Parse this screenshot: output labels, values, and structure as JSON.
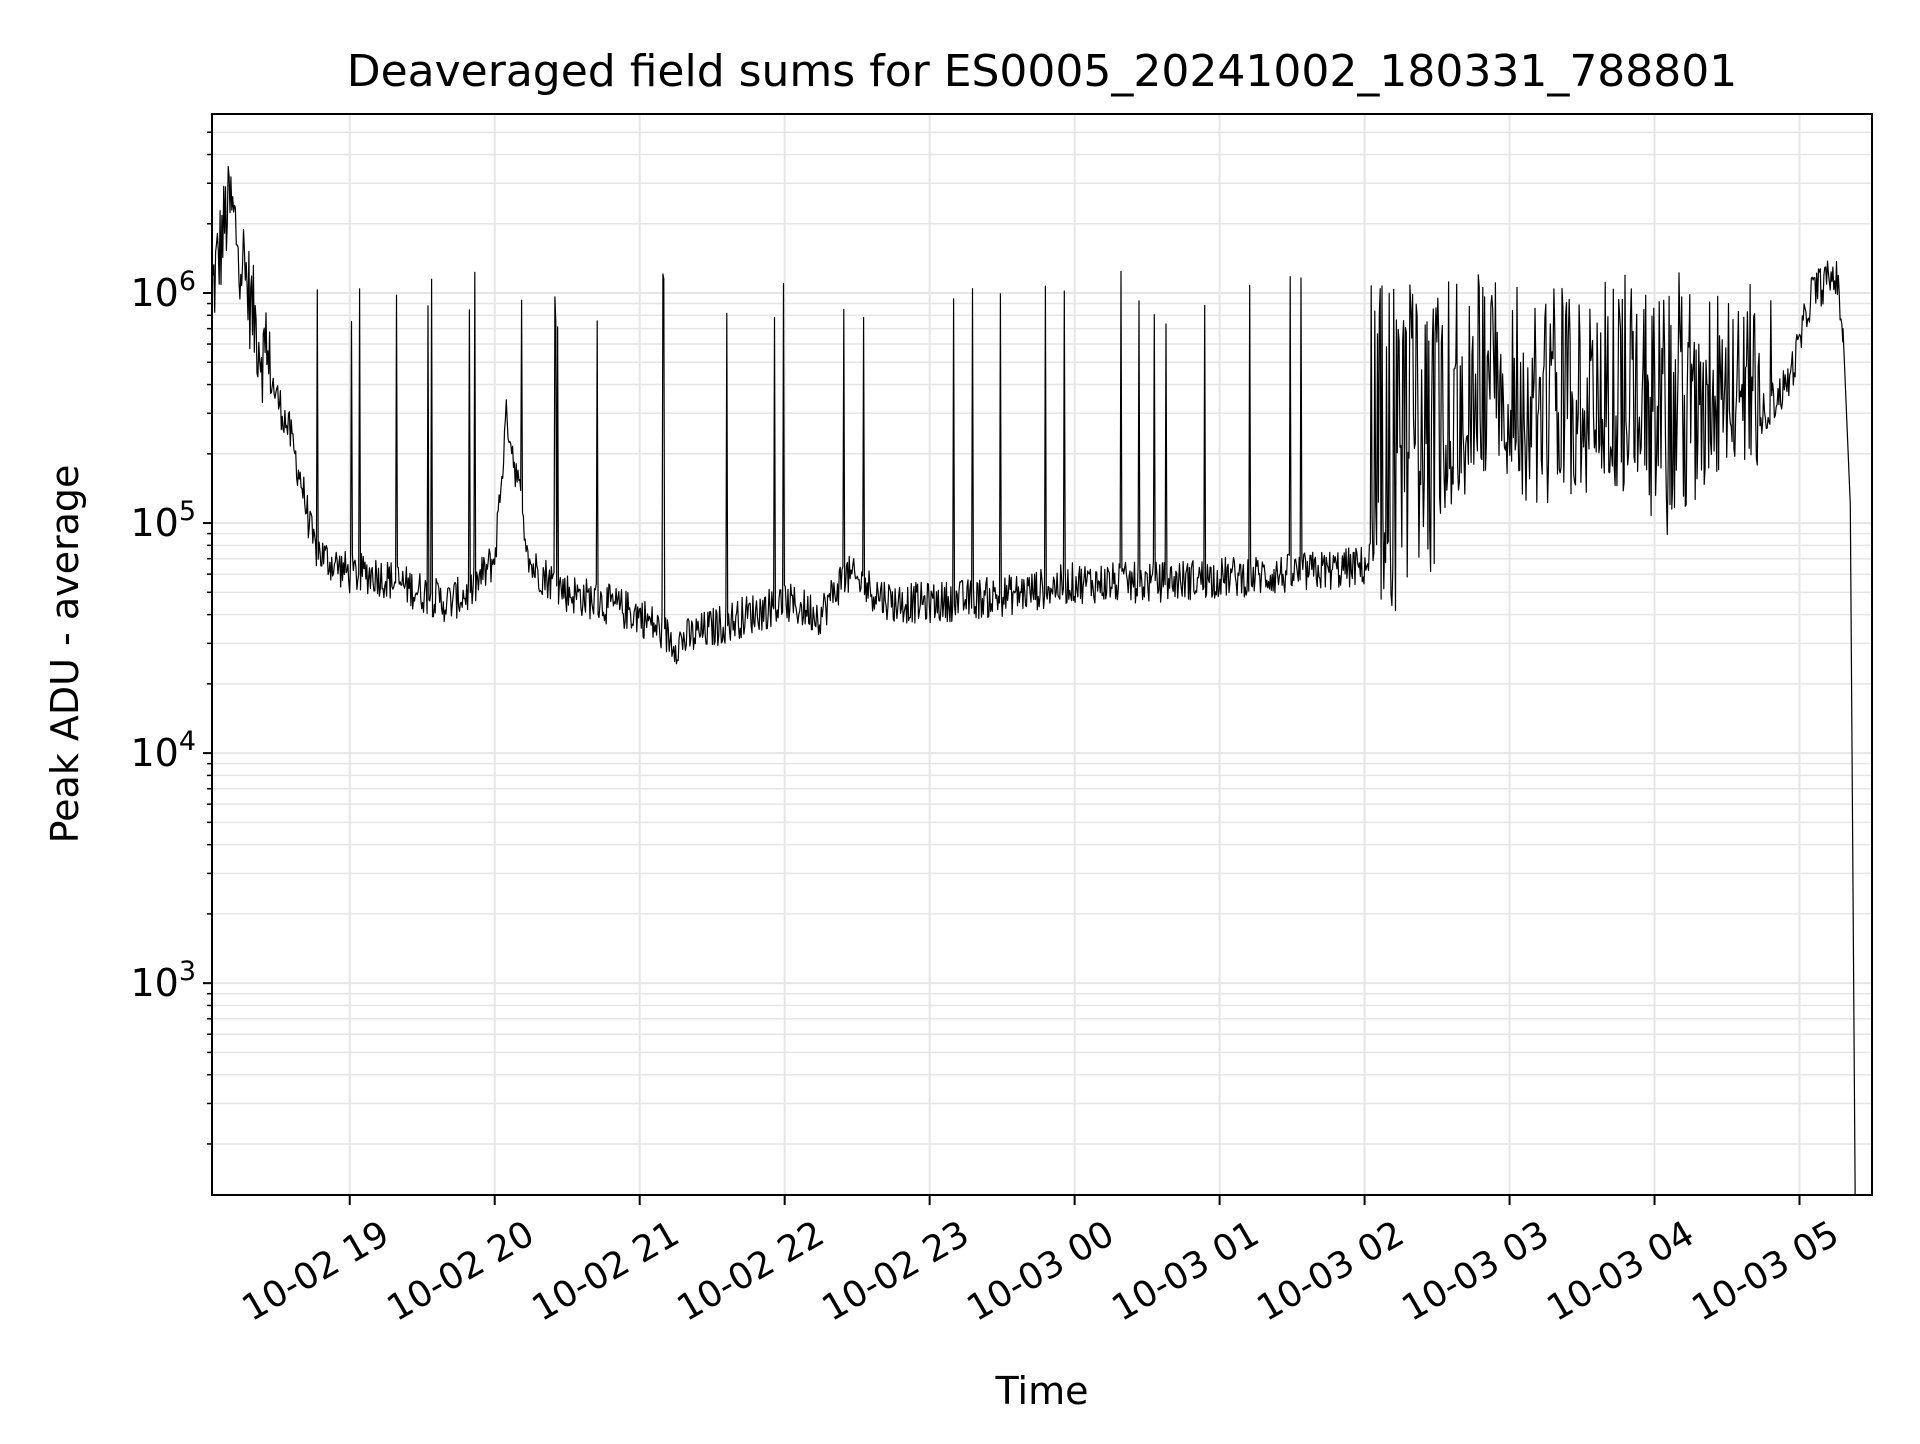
{
  "chart_data": {
    "type": "line",
    "title": "Deaveraged field sums for ES0005_20241002_180331_788801",
    "xlabel": "Time",
    "ylabel": "Peak ADU - average",
    "y_scale": "log",
    "ylim": [
      120,
      6000000
    ],
    "xlim": [
      "2024-10-02 18:03",
      "2024-10-03 05:30"
    ],
    "grid": true,
    "line_color": "#000000",
    "grid_color": "#e6e6e6",
    "x_ticks": [
      {
        "t": "2024-10-02 19:00",
        "label": "10-02 19"
      },
      {
        "t": "2024-10-02 20:00",
        "label": "10-02 20"
      },
      {
        "t": "2024-10-02 21:00",
        "label": "10-02 21"
      },
      {
        "t": "2024-10-02 22:00",
        "label": "10-02 22"
      },
      {
        "t": "2024-10-02 23:00",
        "label": "10-02 23"
      },
      {
        "t": "2024-10-03 00:00",
        "label": "10-03 00"
      },
      {
        "t": "2024-10-03 01:00",
        "label": "10-03 01"
      },
      {
        "t": "2024-10-03 02:00",
        "label": "10-03 02"
      },
      {
        "t": "2024-10-03 03:00",
        "label": "10-03 03"
      },
      {
        "t": "2024-10-03 04:00",
        "label": "10-03 04"
      },
      {
        "t": "2024-10-03 05:00",
        "label": "10-03 05"
      }
    ],
    "y_ticks": [
      {
        "value": 1000,
        "base": "10",
        "exp": "3"
      },
      {
        "value": 10000,
        "base": "10",
        "exp": "4"
      },
      {
        "value": 100000,
        "base": "10",
        "exp": "5"
      },
      {
        "value": 1000000,
        "base": "10",
        "exp": "6"
      }
    ],
    "series": [
      {
        "x": [
          "2024-10-02 18:03",
          "2024-10-02 18:10",
          "2024-10-02 18:15",
          "2024-10-02 18:20",
          "2024-10-02 18:25",
          "2024-10-02 18:30",
          "2024-10-02 18:35",
          "2024-10-02 18:40",
          "2024-10-02 18:45",
          "2024-10-02 18:50",
          "2024-10-02 18:55",
          "2024-10-02 19:00",
          "2024-10-02 19:10",
          "2024-10-02 19:20",
          "2024-10-02 19:30",
          "2024-10-02 19:40",
          "2024-10-02 19:50",
          "2024-10-02 20:00",
          "2024-10-02 20:05",
          "2024-10-02 20:15",
          "2024-10-02 20:30",
          "2024-10-02 20:45",
          "2024-10-02 21:00",
          "2024-10-02 21:15",
          "2024-10-02 21:30",
          "2024-10-02 21:45",
          "2024-10-02 22:00",
          "2024-10-02 22:15",
          "2024-10-02 22:25",
          "2024-10-02 22:45",
          "2024-10-02 23:00",
          "2024-10-02 23:30",
          "2024-10-03 00:00",
          "2024-10-03 00:30",
          "2024-10-03 01:00",
          "2024-10-03 01:30",
          "2024-10-03 02:00",
          "2024-10-03 02:30",
          "2024-10-03 03:00",
          "2024-10-03 03:30",
          "2024-10-03 04:00",
          "2024-10-03 04:30",
          "2024-10-03 04:45",
          "2024-10-03 04:55",
          "2024-10-03 05:00",
          "2024-10-03 05:05",
          "2024-10-03 05:10",
          "2024-10-03 05:15",
          "2024-10-03 05:18",
          "2024-10-03 05:21",
          "2024-10-03 05:23"
        ],
        "y": [
          1000000,
          2500000,
          1500000,
          800000,
          500000,
          350000,
          250000,
          150000,
          80000,
          70000,
          65000,
          60000,
          60000,
          55000,
          50000,
          45000,
          50000,
          70000,
          300000,
          65000,
          50000,
          45000,
          40000,
          30000,
          35000,
          40000,
          45000,
          40000,
          60000,
          45000,
          45000,
          48000,
          55000,
          55000,
          58000,
          60000,
          65000,
          150000,
          300000,
          200000,
          200000,
          250000,
          300000,
          400000,
          600000,
          1000000,
          1100000,
          1200000,
          700000,
          120000,
          130
        ]
      }
    ]
  }
}
